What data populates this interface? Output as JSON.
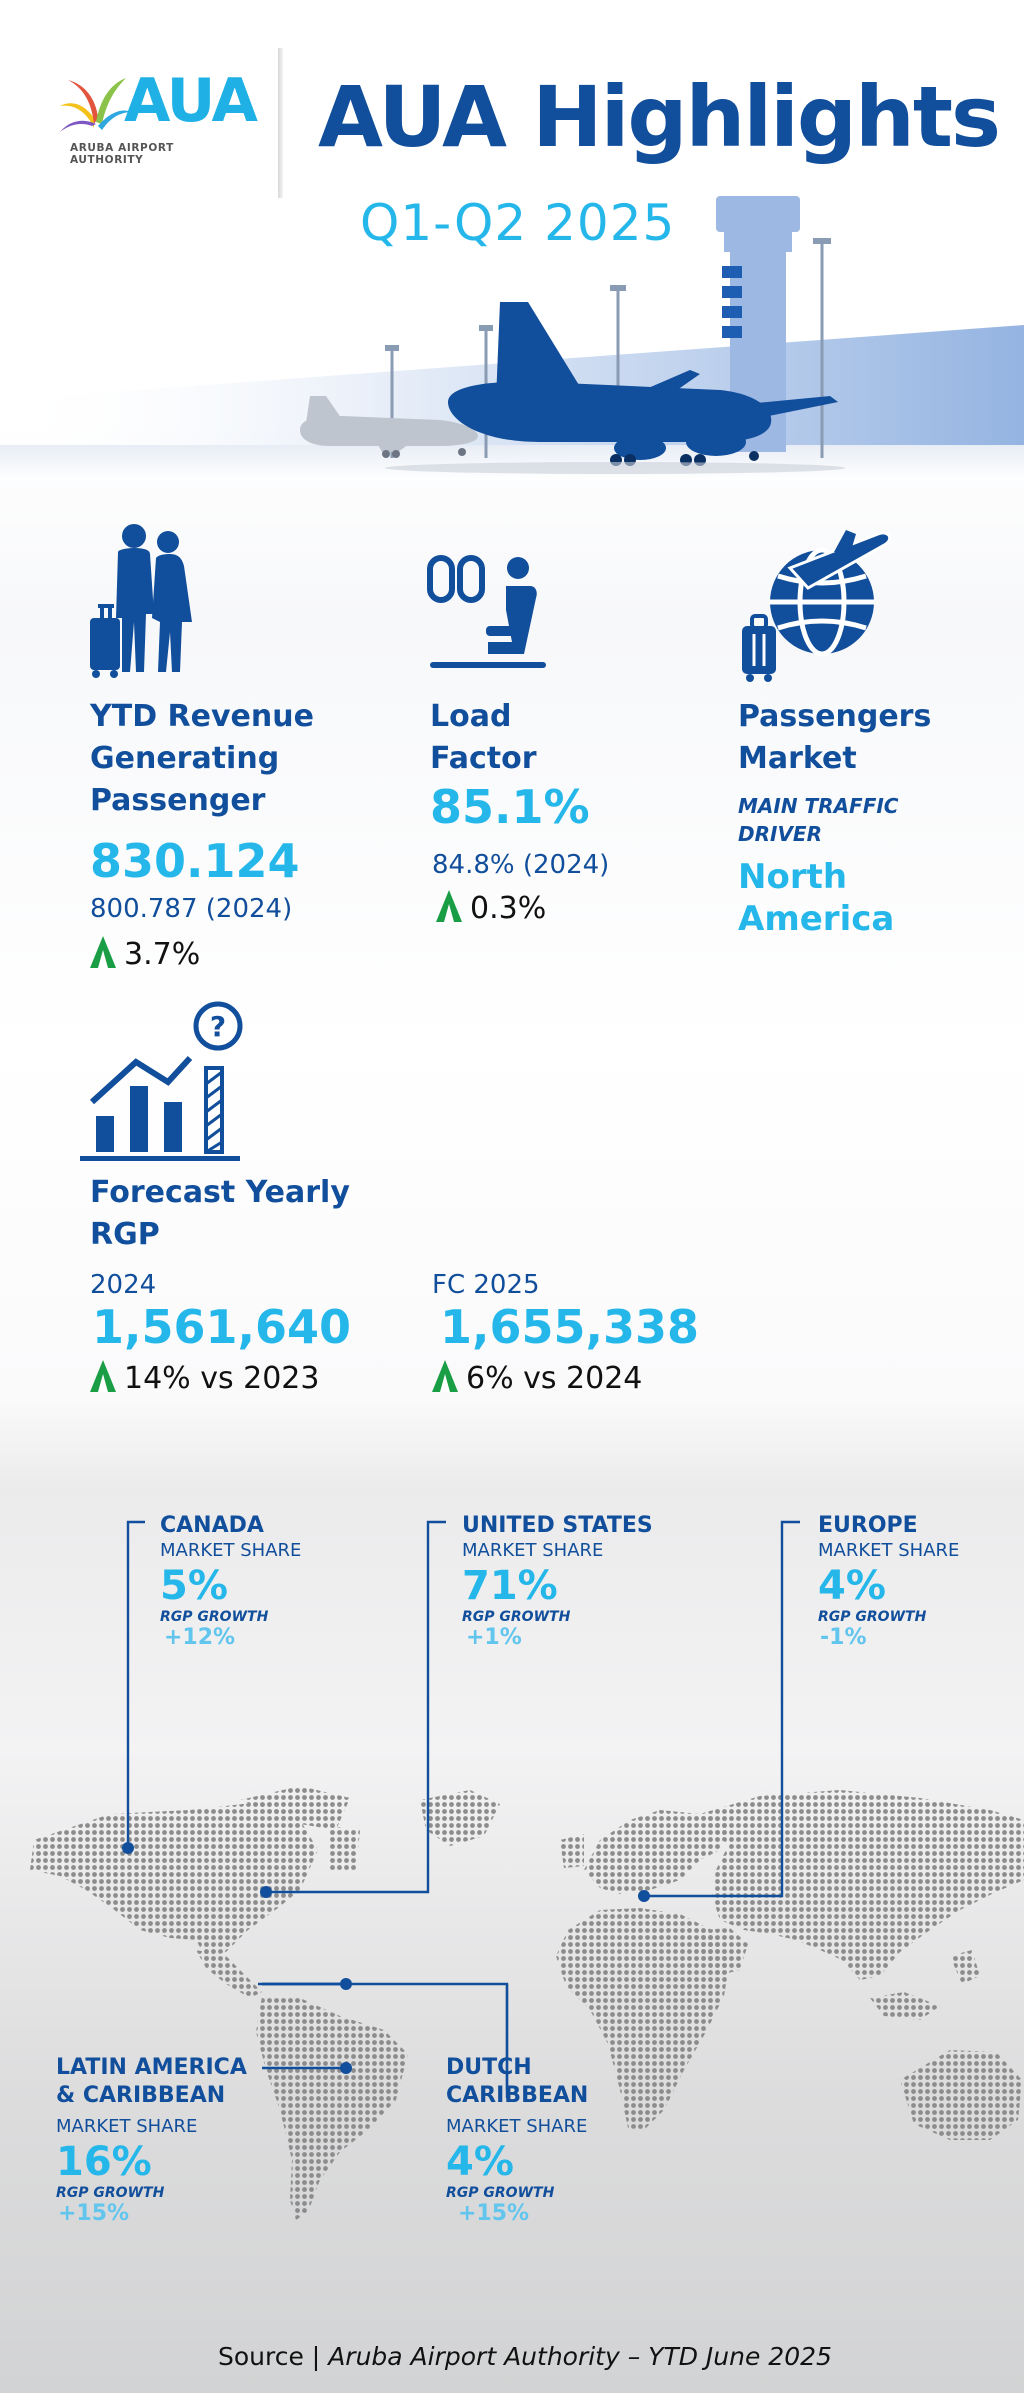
{
  "header": {
    "logo_text": "AUA",
    "logo_subtitle": "ARUBA AIRPORT AUTHORITY",
    "title": "AUA Highlights",
    "subtitle": "Q1-Q2 2025"
  },
  "stats": {
    "passengers": {
      "icon": "couple-luggage-icon",
      "label_line1": "YTD Revenue",
      "label_line2": "Generating",
      "label_line3": "Passenger",
      "value": "830.124",
      "previous": "800.787 (2024)",
      "change": "3.7%"
    },
    "load_factor": {
      "icon": "airplane-seat-icon",
      "label_line1": "Load",
      "label_line2": "Factor",
      "value": "85.1%",
      "previous": "84.8% (2024)",
      "change": "0.3%"
    },
    "market": {
      "icon": "globe-plane-icon",
      "label_line1": "Passengers",
      "label_line2": "Market",
      "caption_line1": "MAIN TRAFFIC",
      "caption_line2": "DRIVER",
      "value_line1": "North",
      "value_line2": "America"
    },
    "forecast": {
      "icon": "bar-chart-question-icon",
      "label_line1": "Forecast Yearly",
      "label_line2": "RGP",
      "y2024_label": "2024",
      "y2024_value": "1,561,640",
      "y2024_change": "14% vs 2023",
      "fc2025_label": "FC 2025",
      "fc2025_value": "1,655,338",
      "fc2025_change": "6% vs 2024"
    }
  },
  "regions": {
    "market_share_label": "MARKET SHARE",
    "rgp_growth_label": "RGP GROWTH",
    "canada": {
      "name": "CANADA",
      "share": "5%",
      "growth": "+12%"
    },
    "united_states": {
      "name": "UNITED STATES",
      "share": "71%",
      "growth": "+1%"
    },
    "europe": {
      "name": "EUROPE",
      "share": "4%",
      "growth": "-1%"
    },
    "latin_america": {
      "name_line1": "LATIN AMERICA",
      "name_line2": "& CARIBBEAN",
      "share": "16%",
      "growth": "+15%"
    },
    "dutch_caribbean": {
      "name_line1": "DUTCH",
      "name_line2": "CARIBBEAN",
      "share": "4%",
      "growth": "+15%"
    }
  },
  "footer": {
    "source_prefix": "Source |",
    "source_text": "Aruba Airport Authority – YTD June 2025"
  },
  "colors": {
    "navy": "#114e9b",
    "cyan": "#25b7ea",
    "light_cyan": "#62c5ee",
    "green": "#1a9e45"
  }
}
